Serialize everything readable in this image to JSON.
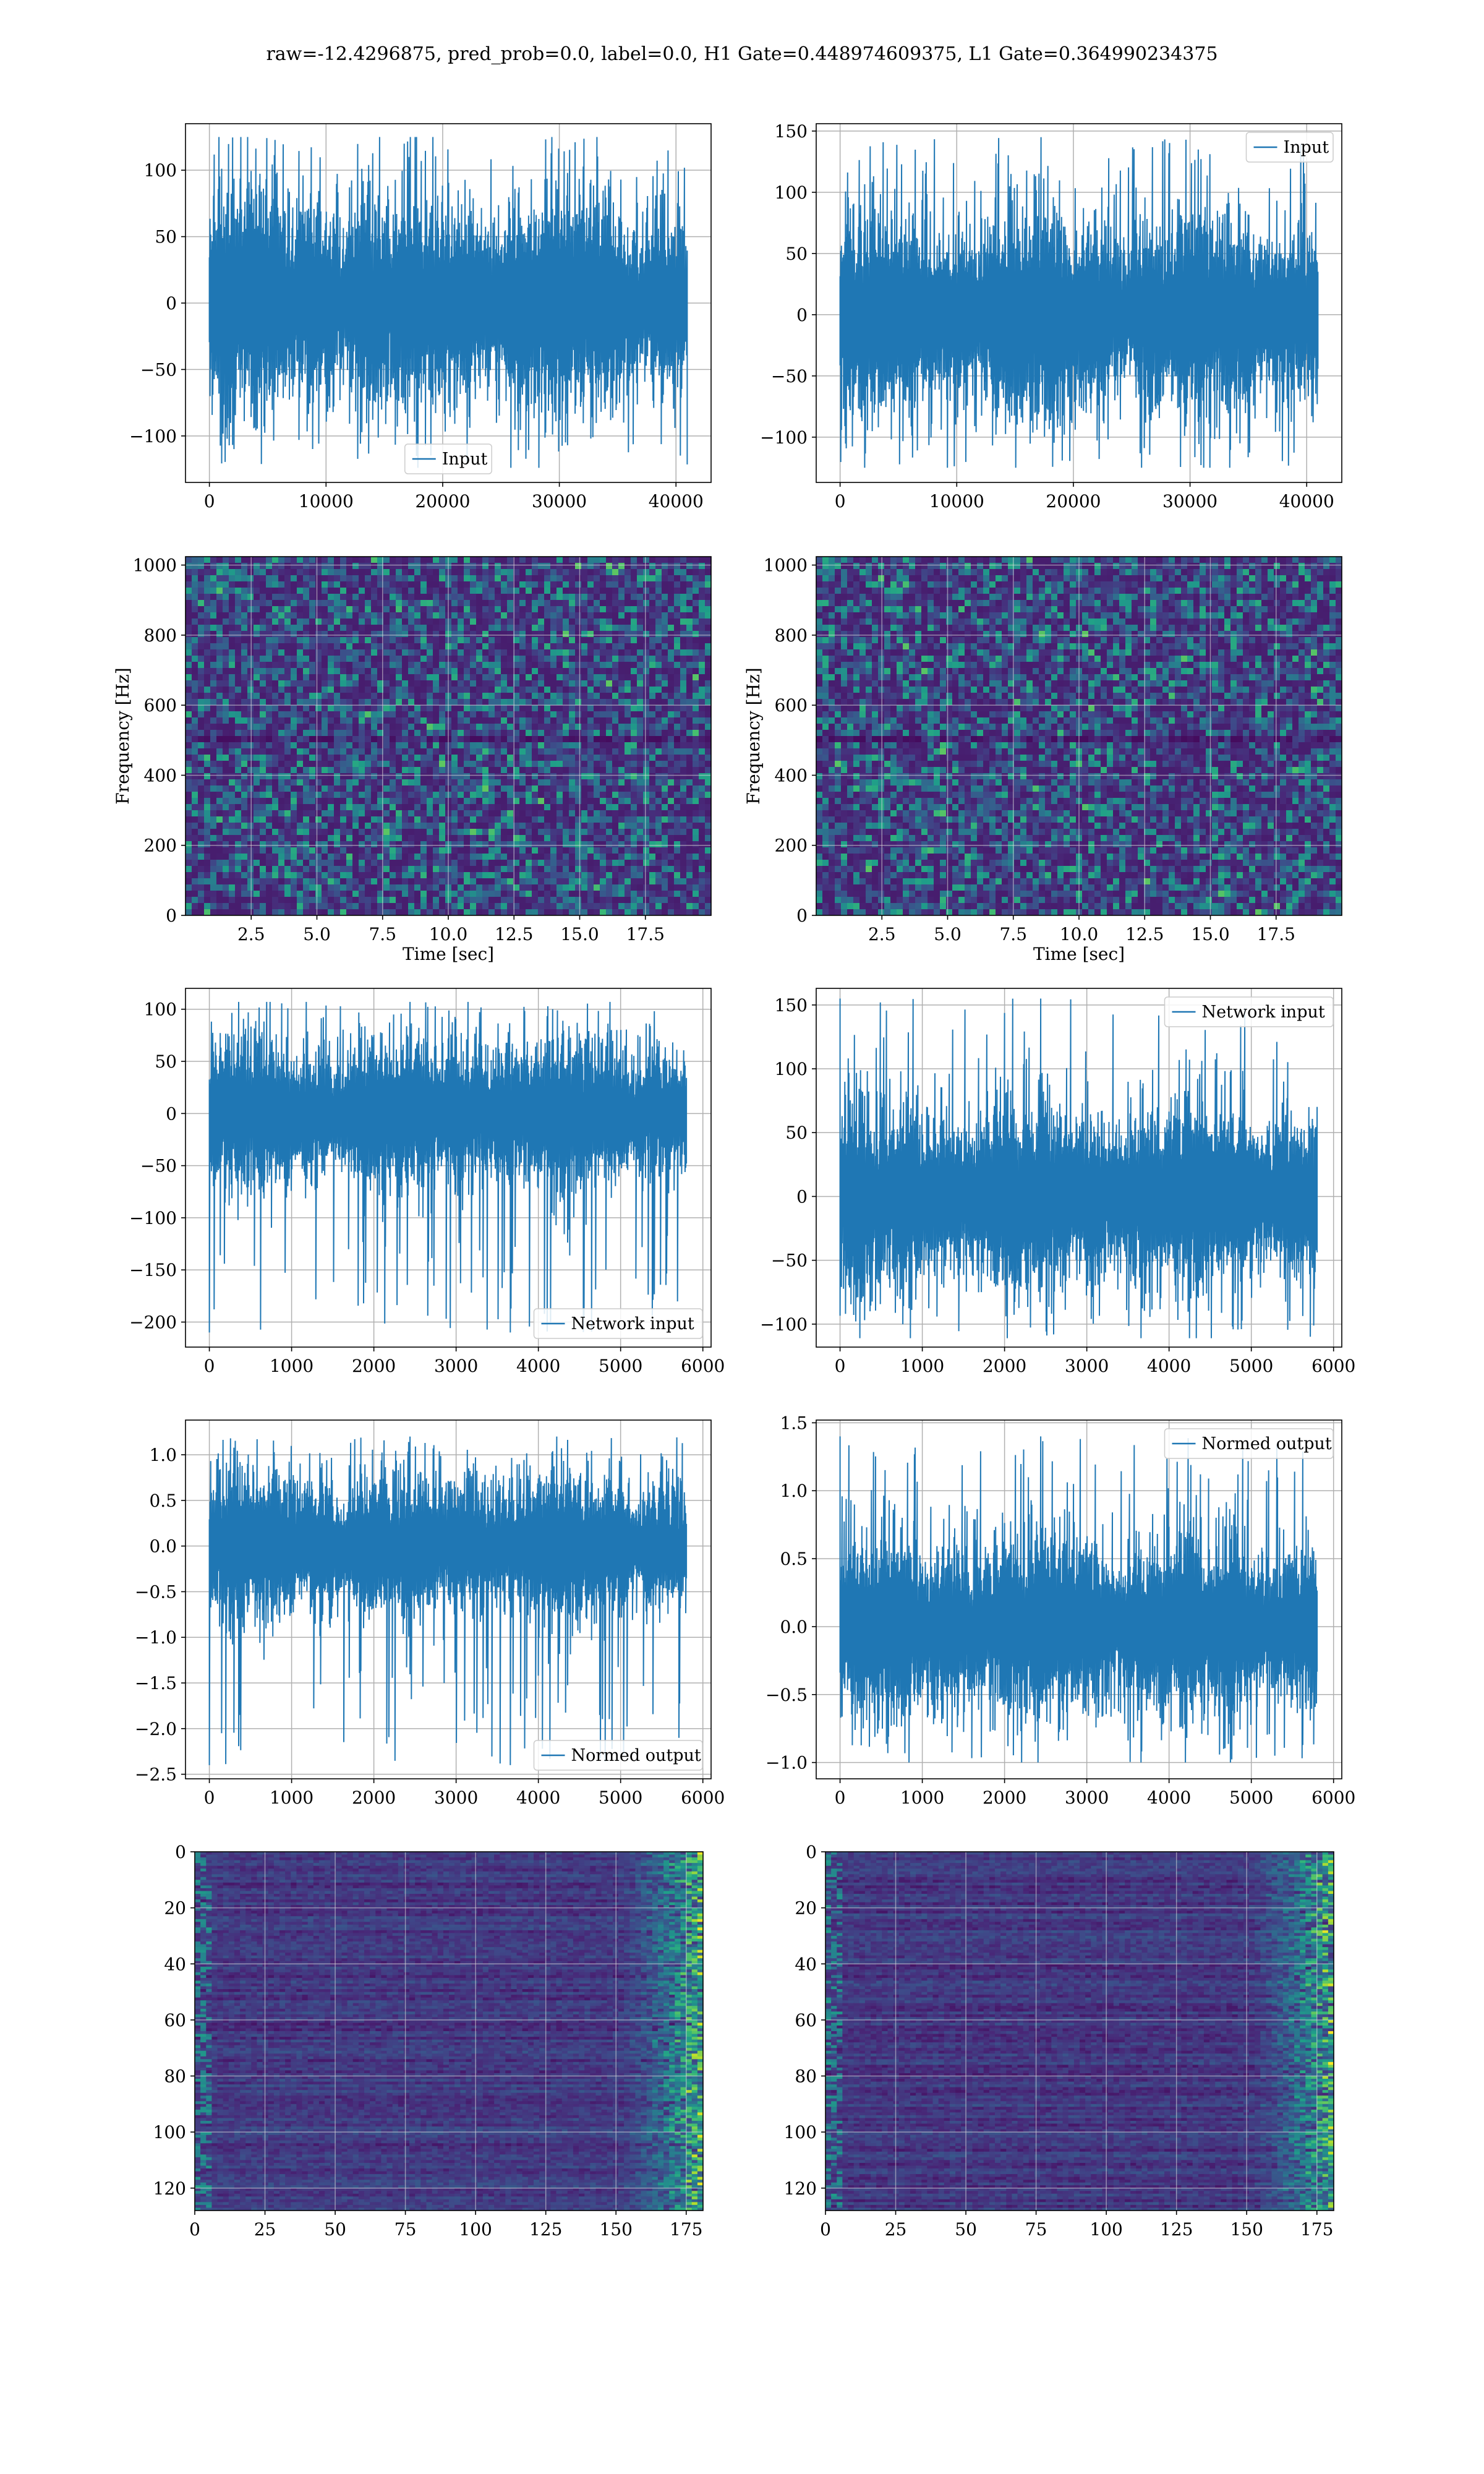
{
  "suptitle": "raw=-12.4296875, pred_prob=0.0, label=0.0, H1 Gate=0.448974609375, L1 Gate=0.364990234375",
  "colors": {
    "line": "#1f77b4",
    "grid": "#b0b0b0",
    "spine": "#000000",
    "heatmap": "viridis"
  },
  "chart_data": [
    {
      "id": "h1-input",
      "type": "line",
      "xlim": [
        -2048,
        43008
      ],
      "ylim": [
        -135,
        135
      ],
      "xticks": [
        0,
        10000,
        20000,
        30000,
        40000
      ],
      "yticks": [
        -100,
        -50,
        0,
        50,
        100
      ],
      "legend": {
        "label": "Input",
        "loc": "lower center"
      },
      "grid": true,
      "series": [
        {
          "name": "Input",
          "n": 40960,
          "x": [
            0,
            40960
          ],
          "y_range": [
            -124,
            125
          ]
        }
      ]
    },
    {
      "id": "l1-input",
      "type": "line",
      "xlim": [
        -2048,
        43008
      ],
      "ylim": [
        -137,
        156
      ],
      "xticks": [
        0,
        10000,
        20000,
        30000,
        40000
      ],
      "yticks": [
        -100,
        -50,
        0,
        50,
        100,
        150
      ],
      "legend": {
        "label": "Input",
        "loc": "upper right"
      },
      "grid": true,
      "series": [
        {
          "name": "Input",
          "n": 40960,
          "x": [
            0,
            40960
          ],
          "y_range": [
            -125,
            145
          ]
        }
      ]
    },
    {
      "id": "h1-spectrogram",
      "type": "heatmap",
      "xlim": [
        0,
        20
      ],
      "ylim": [
        0,
        1024
      ],
      "xticks": [
        2.5,
        5.0,
        7.5,
        10.0,
        12.5,
        15.0,
        17.5
      ],
      "yticks": [
        0,
        200,
        400,
        600,
        800,
        1000
      ],
      "xlabel": "Time [sec]",
      "ylabel": "Frequency [Hz]",
      "grid": true,
      "colormap": "viridis"
    },
    {
      "id": "l1-spectrogram",
      "type": "heatmap",
      "xlim": [
        0,
        20
      ],
      "ylim": [
        0,
        1024
      ],
      "xticks": [
        2.5,
        5.0,
        7.5,
        10.0,
        12.5,
        15.0,
        17.5
      ],
      "yticks": [
        0,
        200,
        400,
        600,
        800,
        1000
      ],
      "xlabel": "Time [sec]",
      "ylabel": "Frequency [Hz]",
      "grid": true,
      "colormap": "viridis"
    },
    {
      "id": "h1-network-input",
      "type": "line",
      "xlim": [
        -290,
        6100
      ],
      "ylim": [
        -224,
        120
      ],
      "xticks": [
        0,
        1000,
        2000,
        3000,
        4000,
        5000,
        6000
      ],
      "yticks": [
        -200,
        -150,
        -100,
        -50,
        0,
        50,
        100
      ],
      "legend": {
        "label": "Network input",
        "loc": "lower right"
      },
      "grid": true,
      "series": [
        {
          "name": "Network input",
          "n": 5800,
          "x": [
            0,
            5800
          ],
          "y_range": [
            -210,
            107
          ]
        }
      ]
    },
    {
      "id": "l1-network-input",
      "type": "line",
      "xlim": [
        -290,
        6100
      ],
      "ylim": [
        -118,
        163
      ],
      "xticks": [
        0,
        1000,
        2000,
        3000,
        4000,
        5000,
        6000
      ],
      "yticks": [
        -100,
        -50,
        0,
        50,
        100,
        150
      ],
      "legend": {
        "label": "Network input",
        "loc": "upper right"
      },
      "grid": true,
      "series": [
        {
          "name": "Network input",
          "n": 5800,
          "x": [
            0,
            5800
          ],
          "y_range": [
            -111,
            155
          ]
        }
      ]
    },
    {
      "id": "h1-normed-output",
      "type": "line",
      "xlim": [
        -290,
        6100
      ],
      "ylim": [
        -2.55,
        1.38
      ],
      "xticks": [
        0,
        1000,
        2000,
        3000,
        4000,
        5000,
        6000
      ],
      "yticks": [
        -2.5,
        -2.0,
        -1.5,
        -1.0,
        -0.5,
        0.0,
        0.5,
        1.0
      ],
      "legend": {
        "label": "Normed output",
        "loc": "lower right"
      },
      "grid": true,
      "series": [
        {
          "name": "Normed output",
          "n": 5800,
          "x": [
            0,
            5800
          ],
          "y_range": [
            -2.4,
            1.2
          ]
        }
      ]
    },
    {
      "id": "l1-normed-output",
      "type": "line",
      "xlim": [
        -290,
        6100
      ],
      "ylim": [
        -1.12,
        1.52
      ],
      "xticks": [
        0,
        1000,
        2000,
        3000,
        4000,
        5000,
        6000
      ],
      "yticks": [
        -1.0,
        -0.5,
        0.0,
        0.5,
        1.0,
        1.5
      ],
      "legend": {
        "label": "Normed output",
        "loc": "upper right"
      },
      "grid": true,
      "series": [
        {
          "name": "Normed output",
          "n": 5800,
          "x": [
            0,
            5800
          ],
          "y_range": [
            -1.0,
            1.4
          ]
        }
      ]
    },
    {
      "id": "h1-features",
      "type": "heatmap",
      "xlim": [
        0,
        181
      ],
      "ylim": [
        128,
        0
      ],
      "xticks": [
        0,
        25,
        50,
        75,
        100,
        125,
        150,
        175
      ],
      "yticks": [
        0,
        20,
        40,
        60,
        80,
        100,
        120
      ],
      "grid": true,
      "colormap": "viridis"
    },
    {
      "id": "l1-features",
      "type": "heatmap",
      "xlim": [
        0,
        181
      ],
      "ylim": [
        128,
        0
      ],
      "xticks": [
        0,
        25,
        50,
        75,
        100,
        125,
        150,
        175
      ],
      "yticks": [
        0,
        20,
        40,
        60,
        80,
        100,
        120
      ],
      "grid": true,
      "colormap": "viridis"
    }
  ]
}
